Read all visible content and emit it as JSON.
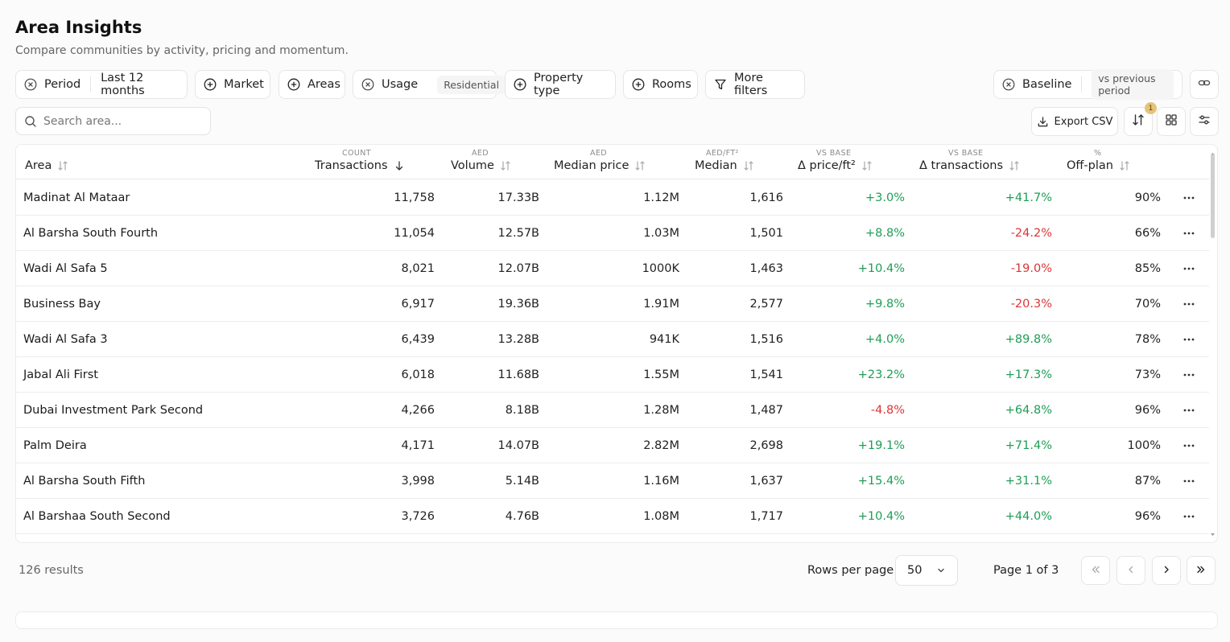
{
  "header": {
    "title": "Area Insights",
    "subtitle": "Compare communities by activity, pricing and momentum."
  },
  "filters": {
    "period": {
      "label": "Period",
      "value": "Last 12 months",
      "icon": "clear-circle-icon"
    },
    "market": {
      "label": "Market",
      "icon": "add-circle-icon"
    },
    "areas": {
      "label": "Areas",
      "icon": "add-circle-icon"
    },
    "usage": {
      "label": "Usage",
      "value": "Residential",
      "icon": "clear-circle-icon"
    },
    "property_type": {
      "label": "Property type",
      "icon": "add-circle-icon"
    },
    "rooms": {
      "label": "Rooms",
      "icon": "add-circle-icon"
    },
    "more_filters": {
      "label": "More filters",
      "icon": "funnel-icon"
    },
    "baseline": {
      "label": "Baseline",
      "value": "vs previous period",
      "icon": "clear-circle-icon"
    }
  },
  "toolbar": {
    "search_placeholder": "Search area...",
    "export_label": "Export CSV",
    "sort_badge": "1"
  },
  "table": {
    "columns": [
      {
        "caption": "",
        "label": "Area"
      },
      {
        "caption": "COUNT",
        "label": "Transactions"
      },
      {
        "caption": "AED",
        "label": "Volume"
      },
      {
        "caption": "AED",
        "label": "Median price"
      },
      {
        "caption": "AED/FT²",
        "label": "Median"
      },
      {
        "caption": "VS BASE",
        "label": "Δ price/ft²"
      },
      {
        "caption": "VS BASE",
        "label": "Δ transactions"
      },
      {
        "caption": "%",
        "label": "Off-plan"
      }
    ],
    "rows": [
      {
        "area": "Madinat Al Mataar",
        "transactions": "11,758",
        "volume": "17.33B",
        "median_price": "1.12M",
        "median": "1,616",
        "d_price": "+3.0%",
        "d_tx": "+41.7%",
        "offplan": "90%"
      },
      {
        "area": "Al Barsha South Fourth",
        "transactions": "11,054",
        "volume": "12.57B",
        "median_price": "1.03M",
        "median": "1,501",
        "d_price": "+8.8%",
        "d_tx": "-24.2%",
        "offplan": "66%"
      },
      {
        "area": "Wadi Al Safa 5",
        "transactions": "8,021",
        "volume": "12.07B",
        "median_price": "1000K",
        "median": "1,463",
        "d_price": "+10.4%",
        "d_tx": "-19.0%",
        "offplan": "85%"
      },
      {
        "area": "Business Bay",
        "transactions": "6,917",
        "volume": "19.36B",
        "median_price": "1.91M",
        "median": "2,577",
        "d_price": "+9.8%",
        "d_tx": "-20.3%",
        "offplan": "70%"
      },
      {
        "area": "Wadi Al Safa 3",
        "transactions": "6,439",
        "volume": "13.28B",
        "median_price": "941K",
        "median": "1,516",
        "d_price": "+4.0%",
        "d_tx": "+89.8%",
        "offplan": "78%"
      },
      {
        "area": "Jabal Ali First",
        "transactions": "6,018",
        "volume": "11.68B",
        "median_price": "1.55M",
        "median": "1,541",
        "d_price": "+23.2%",
        "d_tx": "+17.3%",
        "offplan": "73%"
      },
      {
        "area": "Dubai Investment Park Second",
        "transactions": "4,266",
        "volume": "8.18B",
        "median_price": "1.28M",
        "median": "1,487",
        "d_price": "-4.8%",
        "d_tx": "+64.8%",
        "offplan": "96%"
      },
      {
        "area": "Palm Deira",
        "transactions": "4,171",
        "volume": "14.07B",
        "median_price": "2.82M",
        "median": "2,698",
        "d_price": "+19.1%",
        "d_tx": "+71.4%",
        "offplan": "100%"
      },
      {
        "area": "Al Barsha South Fifth",
        "transactions": "3,998",
        "volume": "5.14B",
        "median_price": "1.16M",
        "median": "1,637",
        "d_price": "+15.4%",
        "d_tx": "+31.1%",
        "offplan": "87%"
      },
      {
        "area": "Al Barshaa South Second",
        "transactions": "3,726",
        "volume": "4.76B",
        "median_price": "1.08M",
        "median": "1,717",
        "d_price": "+10.4%",
        "d_tx": "+44.0%",
        "offplan": "96%"
      }
    ]
  },
  "footer": {
    "results": "126 results",
    "rows_per_page_label": "Rows per page",
    "rows_per_page_value": "50",
    "page_label": "Page 1 of 3"
  },
  "colors": {
    "positive": "#1f9d55",
    "negative": "#d93636",
    "badge": "#e6c27a"
  }
}
